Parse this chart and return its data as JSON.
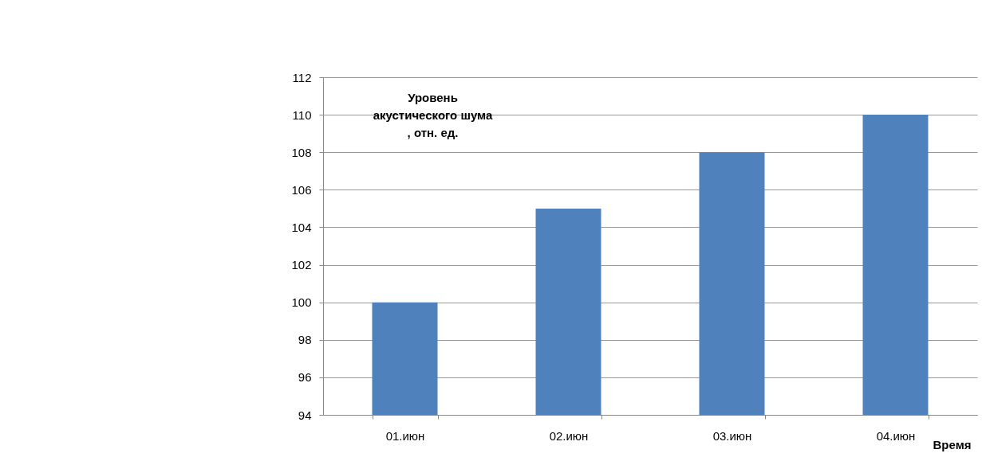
{
  "chart_data": {
    "type": "bar",
    "categories": [
      "01.июн",
      "02.июн",
      "03.июн",
      "04.июн"
    ],
    "values": [
      100,
      105,
      108,
      110
    ],
    "color": "#4f81bd",
    "ylabel": "Уровень акустического шума , отн. ед.",
    "xlabel": "Время",
    "ylim": [
      94,
      112
    ],
    "yticks": [
      94,
      96,
      98,
      100,
      102,
      104,
      106,
      108,
      110,
      112
    ],
    "grid": "y"
  }
}
